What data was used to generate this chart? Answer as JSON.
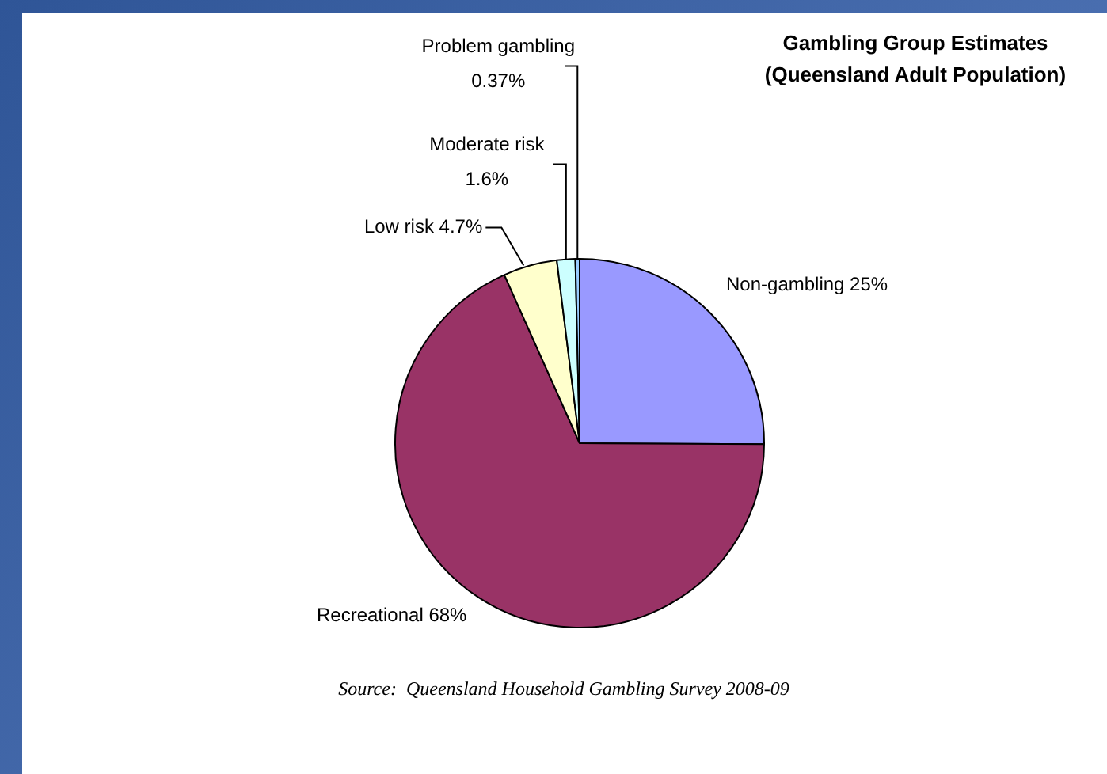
{
  "chart_data": {
    "type": "pie",
    "title": "Gambling Group Estimates",
    "subtitle": "(Queensland Adult Population)",
    "categories": [
      "Non-gambling",
      "Recreational",
      "Low risk",
      "Moderate risk",
      "Problem gambling"
    ],
    "values": [
      25,
      68,
      4.7,
      1.6,
      0.37
    ],
    "value_labels": [
      "25%",
      "68%",
      "4.7%",
      "1.6%",
      "0.37%"
    ],
    "colors": [
      "#9999ff",
      "#993366",
      "#ffffcc",
      "#ccffff",
      "#99ccff"
    ],
    "annotations": [
      "Source:  Queensland Household Gambling Survey 2008-09"
    ],
    "legend": false
  }
}
